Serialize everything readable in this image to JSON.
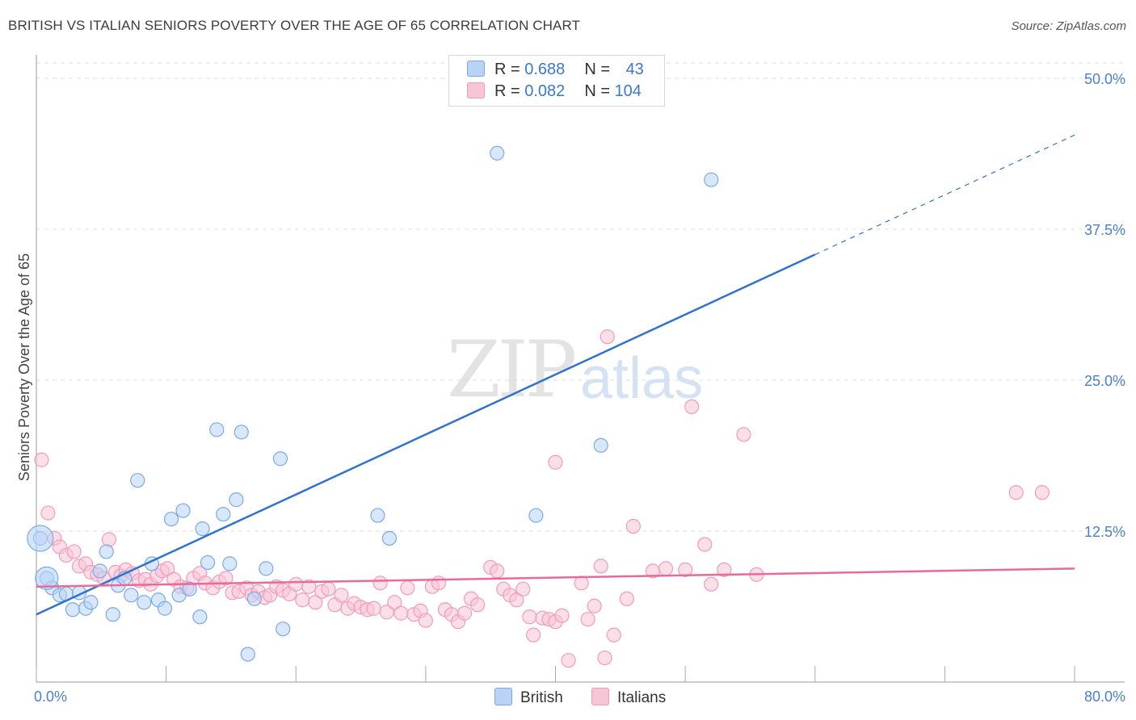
{
  "title": "BRITISH VS ITALIAN SENIORS POVERTY OVER THE AGE OF 65 CORRELATION CHART",
  "source": "Source: ZipAtlas.com",
  "watermark": {
    "zip": "ZIP",
    "atlas": "atlas"
  },
  "legend": {
    "british": {
      "r_label": "R = ",
      "r_value": "0.688",
      "n_label": "N = ",
      "n_value": "43",
      "color": "#7aaae6",
      "fill": "#b9d3f5"
    },
    "italians": {
      "r_label": "R = ",
      "r_value": "0.082",
      "n_label": "N = ",
      "n_value": "104",
      "color": "#f29bb8",
      "fill": "#f8c5d6"
    }
  },
  "bottom_legend": {
    "british": "British",
    "italians": "Italians"
  },
  "chart_data": {
    "type": "scatter",
    "title": "BRITISH VS ITALIAN SENIORS POVERTY OVER THE AGE OF 65 CORRELATION CHART",
    "xlabel": "",
    "ylabel": "Seniors Poverty Over the Age of 65",
    "xlim": [
      0,
      80
    ],
    "ylim": [
      0,
      50
    ],
    "x_tick_labels": [
      "0.0%",
      "80.0%"
    ],
    "y_ticks": [
      12.5,
      25.0,
      37.5,
      50.0
    ],
    "y_tick_labels": [
      "12.5%",
      "25.0%",
      "37.5%",
      "50.0%"
    ],
    "grid": true,
    "series": [
      {
        "name": "British",
        "color": "#7aaae6",
        "fill": "#b9d3f5",
        "line_color": "#2f72d0",
        "trend": {
          "x0": 0,
          "y0": 5.6,
          "x1": 60,
          "y1": 35.4,
          "dash_to_x": 80,
          "dash_to_y": 45.3
        },
        "points": [
          [
            0.3,
            11.9
          ],
          [
            0.8,
            8.6
          ],
          [
            1.2,
            7.8
          ],
          [
            1.8,
            7.2
          ],
          [
            2.3,
            7.3
          ],
          [
            2.8,
            6.0
          ],
          [
            3.3,
            7.4
          ],
          [
            3.8,
            6.1
          ],
          [
            4.2,
            6.6
          ],
          [
            4.9,
            9.2
          ],
          [
            5.4,
            10.8
          ],
          [
            5.9,
            5.6
          ],
          [
            6.3,
            8.0
          ],
          [
            6.8,
            8.6
          ],
          [
            7.3,
            7.2
          ],
          [
            7.8,
            16.7
          ],
          [
            8.3,
            6.6
          ],
          [
            8.9,
            9.8
          ],
          [
            9.4,
            6.8
          ],
          [
            9.9,
            6.1
          ],
          [
            10.4,
            13.5
          ],
          [
            11.0,
            7.2
          ],
          [
            11.3,
            14.2
          ],
          [
            11.8,
            7.7
          ],
          [
            12.6,
            5.4
          ],
          [
            12.8,
            12.7
          ],
          [
            13.2,
            9.9
          ],
          [
            13.9,
            20.9
          ],
          [
            14.4,
            13.9
          ],
          [
            14.9,
            9.8
          ],
          [
            15.4,
            15.1
          ],
          [
            15.8,
            20.7
          ],
          [
            16.8,
            6.9
          ],
          [
            17.7,
            9.4
          ],
          [
            18.8,
            18.5
          ],
          [
            19.0,
            4.4
          ],
          [
            16.3,
            2.3
          ],
          [
            26.3,
            13.8
          ],
          [
            27.2,
            11.9
          ],
          [
            35.5,
            43.8
          ],
          [
            38.5,
            13.8
          ],
          [
            43.5,
            19.6
          ],
          [
            52.0,
            41.6
          ]
        ],
        "large_points": [
          [
            0.3,
            11.9,
            16
          ],
          [
            0.8,
            8.6,
            14
          ]
        ]
      },
      {
        "name": "Italians",
        "color": "#f29bb8",
        "fill": "#f8c5d6",
        "line_color": "#e8699a",
        "trend": {
          "x0": 0,
          "y0": 7.9,
          "x1": 80,
          "y1": 9.4
        },
        "points": [
          [
            0.4,
            18.4
          ],
          [
            0.9,
            14.0
          ],
          [
            1.4,
            11.9
          ],
          [
            1.8,
            11.2
          ],
          [
            2.3,
            10.5
          ],
          [
            2.9,
            10.8
          ],
          [
            3.3,
            9.6
          ],
          [
            3.8,
            9.8
          ],
          [
            4.2,
            9.1
          ],
          [
            4.7,
            8.9
          ],
          [
            5.2,
            8.6
          ],
          [
            5.6,
            11.8
          ],
          [
            6.1,
            9.1
          ],
          [
            6.5,
            8.8
          ],
          [
            6.9,
            9.3
          ],
          [
            7.4,
            9.0
          ],
          [
            7.9,
            8.4
          ],
          [
            8.4,
            8.5
          ],
          [
            8.8,
            8.1
          ],
          [
            9.3,
            8.8
          ],
          [
            9.7,
            9.2
          ],
          [
            10.1,
            9.4
          ],
          [
            10.6,
            8.5
          ],
          [
            11.1,
            7.9
          ],
          [
            11.6,
            7.8
          ],
          [
            12.1,
            8.6
          ],
          [
            12.6,
            9.0
          ],
          [
            13.0,
            8.2
          ],
          [
            13.6,
            7.8
          ],
          [
            14.1,
            8.3
          ],
          [
            14.6,
            8.6
          ],
          [
            15.1,
            7.4
          ],
          [
            15.6,
            7.5
          ],
          [
            16.2,
            7.8
          ],
          [
            16.6,
            7.2
          ],
          [
            17.1,
            7.5
          ],
          [
            17.6,
            7.0
          ],
          [
            18.0,
            7.2
          ],
          [
            18.5,
            7.9
          ],
          [
            19.0,
            7.6
          ],
          [
            19.5,
            7.3
          ],
          [
            20.0,
            8.1
          ],
          [
            20.5,
            6.8
          ],
          [
            21.0,
            7.9
          ],
          [
            21.5,
            6.6
          ],
          [
            22.0,
            7.5
          ],
          [
            22.5,
            7.7
          ],
          [
            23.0,
            6.4
          ],
          [
            23.5,
            7.2
          ],
          [
            24.0,
            6.1
          ],
          [
            24.5,
            6.5
          ],
          [
            25.0,
            6.2
          ],
          [
            25.5,
            6.0
          ],
          [
            26.0,
            6.1
          ],
          [
            26.5,
            8.2
          ],
          [
            27.0,
            5.8
          ],
          [
            27.6,
            6.6
          ],
          [
            28.1,
            5.7
          ],
          [
            28.6,
            7.8
          ],
          [
            29.1,
            5.6
          ],
          [
            29.6,
            5.9
          ],
          [
            30.0,
            5.1
          ],
          [
            30.5,
            7.9
          ],
          [
            31.0,
            8.2
          ],
          [
            31.5,
            6.0
          ],
          [
            32.0,
            5.6
          ],
          [
            32.5,
            5.0
          ],
          [
            33.0,
            5.7
          ],
          [
            33.5,
            6.9
          ],
          [
            34.0,
            6.4
          ],
          [
            35.0,
            9.5
          ],
          [
            35.5,
            9.2
          ],
          [
            36.0,
            7.7
          ],
          [
            36.5,
            7.2
          ],
          [
            37.0,
            6.8
          ],
          [
            37.5,
            7.7
          ],
          [
            38.0,
            5.4
          ],
          [
            38.3,
            3.9
          ],
          [
            39.0,
            5.3
          ],
          [
            39.5,
            5.2
          ],
          [
            40.0,
            5.0
          ],
          [
            40.5,
            5.5
          ],
          [
            41.0,
            1.8
          ],
          [
            42.0,
            8.2
          ],
          [
            42.5,
            5.2
          ],
          [
            43.0,
            6.3
          ],
          [
            44.0,
            28.6
          ],
          [
            44.5,
            3.9
          ],
          [
            45.5,
            6.9
          ],
          [
            46.0,
            12.9
          ],
          [
            47.5,
            9.2
          ],
          [
            48.5,
            9.4
          ],
          [
            50.0,
            9.3
          ],
          [
            50.5,
            22.8
          ],
          [
            51.5,
            11.4
          ],
          [
            52.0,
            8.1
          ],
          [
            53.0,
            9.3
          ],
          [
            54.5,
            20.5
          ],
          [
            55.5,
            8.9
          ],
          [
            40.0,
            18.2
          ],
          [
            43.5,
            9.6
          ],
          [
            43.8,
            2.0
          ],
          [
            75.5,
            15.7
          ],
          [
            77.5,
            15.7
          ]
        ]
      }
    ]
  }
}
